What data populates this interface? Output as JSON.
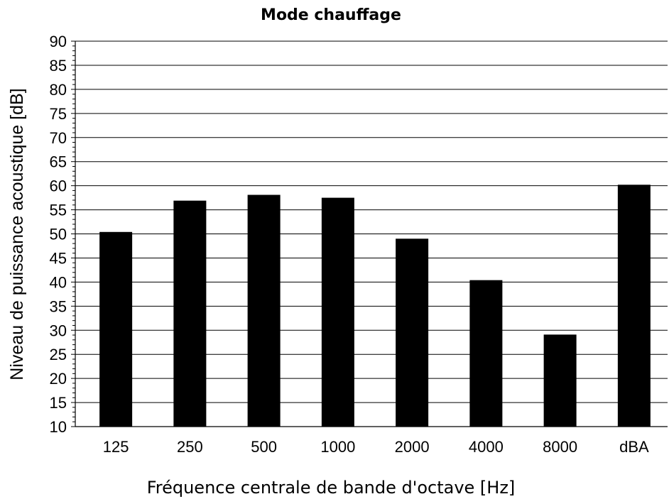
{
  "chart_data": {
    "type": "bar",
    "title": "Mode chauffage",
    "xlabel": "Fréquence centrale de bande d'octave [Hz]",
    "ylabel": "Niveau de puissance acoustique [dB]",
    "categories": [
      "125",
      "250",
      "500",
      "1000",
      "2000",
      "4000",
      "8000",
      "dBA"
    ],
    "values": [
      50.4,
      56.9,
      58.1,
      57.5,
      49.0,
      40.4,
      29.1,
      60.2
    ],
    "ylim": [
      10,
      90
    ],
    "yticks": [
      10,
      15,
      20,
      25,
      30,
      35,
      40,
      45,
      50,
      55,
      60,
      65,
      70,
      75,
      80,
      85,
      90
    ],
    "grid": true,
    "legend": "none",
    "bar_color": "#000000"
  }
}
